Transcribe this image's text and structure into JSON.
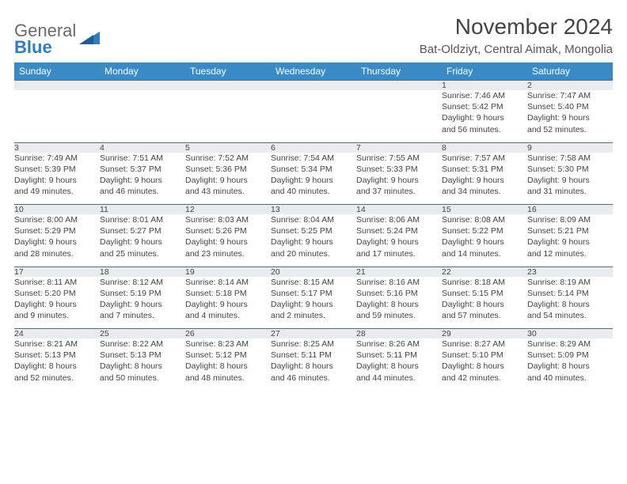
{
  "brand": {
    "top": "General",
    "bottom": "Blue"
  },
  "title": "November 2024",
  "location": "Bat-Oldziyt, Central Aimak, Mongolia",
  "colors": {
    "header_bg": "#3a8ac6",
    "daynum_bg": "#e8ecef",
    "border": "#5a6a78",
    "text": "#444444",
    "brand_blue": "#2f7cc0"
  },
  "weekdays": [
    "Sunday",
    "Monday",
    "Tuesday",
    "Wednesday",
    "Thursday",
    "Friday",
    "Saturday"
  ],
  "weeks": [
    [
      null,
      null,
      null,
      null,
      null,
      {
        "n": "1",
        "sunrise": "Sunrise: 7:46 AM",
        "sunset": "Sunset: 5:42 PM",
        "day1": "Daylight: 9 hours",
        "day2": "and 56 minutes."
      },
      {
        "n": "2",
        "sunrise": "Sunrise: 7:47 AM",
        "sunset": "Sunset: 5:40 PM",
        "day1": "Daylight: 9 hours",
        "day2": "and 52 minutes."
      }
    ],
    [
      {
        "n": "3",
        "sunrise": "Sunrise: 7:49 AM",
        "sunset": "Sunset: 5:39 PM",
        "day1": "Daylight: 9 hours",
        "day2": "and 49 minutes."
      },
      {
        "n": "4",
        "sunrise": "Sunrise: 7:51 AM",
        "sunset": "Sunset: 5:37 PM",
        "day1": "Daylight: 9 hours",
        "day2": "and 46 minutes."
      },
      {
        "n": "5",
        "sunrise": "Sunrise: 7:52 AM",
        "sunset": "Sunset: 5:36 PM",
        "day1": "Daylight: 9 hours",
        "day2": "and 43 minutes."
      },
      {
        "n": "6",
        "sunrise": "Sunrise: 7:54 AM",
        "sunset": "Sunset: 5:34 PM",
        "day1": "Daylight: 9 hours",
        "day2": "and 40 minutes."
      },
      {
        "n": "7",
        "sunrise": "Sunrise: 7:55 AM",
        "sunset": "Sunset: 5:33 PM",
        "day1": "Daylight: 9 hours",
        "day2": "and 37 minutes."
      },
      {
        "n": "8",
        "sunrise": "Sunrise: 7:57 AM",
        "sunset": "Sunset: 5:31 PM",
        "day1": "Daylight: 9 hours",
        "day2": "and 34 minutes."
      },
      {
        "n": "9",
        "sunrise": "Sunrise: 7:58 AM",
        "sunset": "Sunset: 5:30 PM",
        "day1": "Daylight: 9 hours",
        "day2": "and 31 minutes."
      }
    ],
    [
      {
        "n": "10",
        "sunrise": "Sunrise: 8:00 AM",
        "sunset": "Sunset: 5:29 PM",
        "day1": "Daylight: 9 hours",
        "day2": "and 28 minutes."
      },
      {
        "n": "11",
        "sunrise": "Sunrise: 8:01 AM",
        "sunset": "Sunset: 5:27 PM",
        "day1": "Daylight: 9 hours",
        "day2": "and 25 minutes."
      },
      {
        "n": "12",
        "sunrise": "Sunrise: 8:03 AM",
        "sunset": "Sunset: 5:26 PM",
        "day1": "Daylight: 9 hours",
        "day2": "and 23 minutes."
      },
      {
        "n": "13",
        "sunrise": "Sunrise: 8:04 AM",
        "sunset": "Sunset: 5:25 PM",
        "day1": "Daylight: 9 hours",
        "day2": "and 20 minutes."
      },
      {
        "n": "14",
        "sunrise": "Sunrise: 8:06 AM",
        "sunset": "Sunset: 5:24 PM",
        "day1": "Daylight: 9 hours",
        "day2": "and 17 minutes."
      },
      {
        "n": "15",
        "sunrise": "Sunrise: 8:08 AM",
        "sunset": "Sunset: 5:22 PM",
        "day1": "Daylight: 9 hours",
        "day2": "and 14 minutes."
      },
      {
        "n": "16",
        "sunrise": "Sunrise: 8:09 AM",
        "sunset": "Sunset: 5:21 PM",
        "day1": "Daylight: 9 hours",
        "day2": "and 12 minutes."
      }
    ],
    [
      {
        "n": "17",
        "sunrise": "Sunrise: 8:11 AM",
        "sunset": "Sunset: 5:20 PM",
        "day1": "Daylight: 9 hours",
        "day2": "and 9 minutes."
      },
      {
        "n": "18",
        "sunrise": "Sunrise: 8:12 AM",
        "sunset": "Sunset: 5:19 PM",
        "day1": "Daylight: 9 hours",
        "day2": "and 7 minutes."
      },
      {
        "n": "19",
        "sunrise": "Sunrise: 8:14 AM",
        "sunset": "Sunset: 5:18 PM",
        "day1": "Daylight: 9 hours",
        "day2": "and 4 minutes."
      },
      {
        "n": "20",
        "sunrise": "Sunrise: 8:15 AM",
        "sunset": "Sunset: 5:17 PM",
        "day1": "Daylight: 9 hours",
        "day2": "and 2 minutes."
      },
      {
        "n": "21",
        "sunrise": "Sunrise: 8:16 AM",
        "sunset": "Sunset: 5:16 PM",
        "day1": "Daylight: 8 hours",
        "day2": "and 59 minutes."
      },
      {
        "n": "22",
        "sunrise": "Sunrise: 8:18 AM",
        "sunset": "Sunset: 5:15 PM",
        "day1": "Daylight: 8 hours",
        "day2": "and 57 minutes."
      },
      {
        "n": "23",
        "sunrise": "Sunrise: 8:19 AM",
        "sunset": "Sunset: 5:14 PM",
        "day1": "Daylight: 8 hours",
        "day2": "and 54 minutes."
      }
    ],
    [
      {
        "n": "24",
        "sunrise": "Sunrise: 8:21 AM",
        "sunset": "Sunset: 5:13 PM",
        "day1": "Daylight: 8 hours",
        "day2": "and 52 minutes."
      },
      {
        "n": "25",
        "sunrise": "Sunrise: 8:22 AM",
        "sunset": "Sunset: 5:13 PM",
        "day1": "Daylight: 8 hours",
        "day2": "and 50 minutes."
      },
      {
        "n": "26",
        "sunrise": "Sunrise: 8:23 AM",
        "sunset": "Sunset: 5:12 PM",
        "day1": "Daylight: 8 hours",
        "day2": "and 48 minutes."
      },
      {
        "n": "27",
        "sunrise": "Sunrise: 8:25 AM",
        "sunset": "Sunset: 5:11 PM",
        "day1": "Daylight: 8 hours",
        "day2": "and 46 minutes."
      },
      {
        "n": "28",
        "sunrise": "Sunrise: 8:26 AM",
        "sunset": "Sunset: 5:11 PM",
        "day1": "Daylight: 8 hours",
        "day2": "and 44 minutes."
      },
      {
        "n": "29",
        "sunrise": "Sunrise: 8:27 AM",
        "sunset": "Sunset: 5:10 PM",
        "day1": "Daylight: 8 hours",
        "day2": "and 42 minutes."
      },
      {
        "n": "30",
        "sunrise": "Sunrise: 8:29 AM",
        "sunset": "Sunset: 5:09 PM",
        "day1": "Daylight: 8 hours",
        "day2": "and 40 minutes."
      }
    ]
  ]
}
